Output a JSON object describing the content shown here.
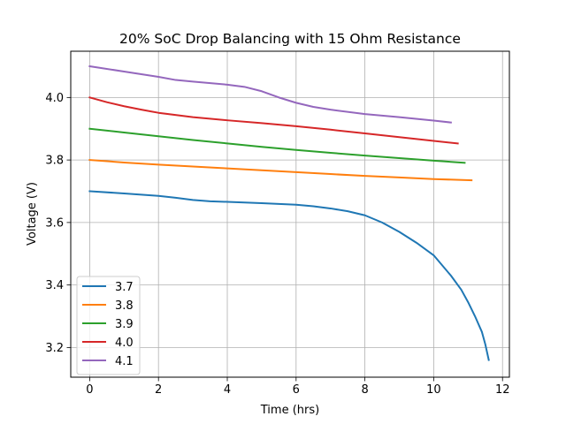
{
  "chart_data": {
    "type": "line",
    "title": "20% SoC Drop Balancing with 15 Ohm Resistance",
    "xlabel": "Time (hrs)",
    "ylabel": "Voltage (V)",
    "xlim": [
      -0.55,
      12.2
    ],
    "ylim": [
      3.105,
      4.148
    ],
    "xticks": [
      0,
      2,
      4,
      6,
      8,
      10,
      12
    ],
    "xtick_labels": [
      "0",
      "2",
      "4",
      "6",
      "8",
      "10",
      "12"
    ],
    "yticks": [
      3.2,
      3.4,
      3.6,
      3.8,
      4.0
    ],
    "ytick_labels": [
      "3.2",
      "3.4",
      "3.6",
      "3.8",
      "4.0"
    ],
    "grid": true,
    "legend_position": "lower-left",
    "series": [
      {
        "name": "3.7",
        "color": "#1f77b4",
        "x": [
          0,
          1,
          2,
          2.5,
          3,
          3.5,
          4,
          5,
          6,
          6.5,
          7,
          7.5,
          8,
          8.5,
          9,
          9.5,
          10,
          10.5,
          10.8,
          11,
          11.2,
          11.4,
          11.5,
          11.6
        ],
        "y": [
          3.7,
          3.693,
          3.685,
          3.679,
          3.672,
          3.668,
          3.666,
          3.662,
          3.657,
          3.652,
          3.645,
          3.636,
          3.623,
          3.6,
          3.57,
          3.535,
          3.495,
          3.43,
          3.385,
          3.345,
          3.3,
          3.25,
          3.21,
          3.16
        ]
      },
      {
        "name": "3.8",
        "color": "#ff7f0e",
        "x": [
          0,
          1,
          2,
          3,
          4,
          5,
          6,
          7,
          8,
          9,
          10,
          11.1
        ],
        "y": [
          3.8,
          3.792,
          3.785,
          3.779,
          3.773,
          3.767,
          3.761,
          3.755,
          3.749,
          3.744,
          3.739,
          3.735
        ]
      },
      {
        "name": "3.9",
        "color": "#2ca02c",
        "x": [
          0,
          1,
          2,
          3,
          4,
          5,
          6,
          7,
          8,
          9,
          10,
          10.9
        ],
        "y": [
          3.9,
          3.888,
          3.876,
          3.864,
          3.853,
          3.842,
          3.832,
          3.823,
          3.814,
          3.806,
          3.798,
          3.791
        ]
      },
      {
        "name": "4.0",
        "color": "#d62728",
        "x": [
          0,
          0.5,
          1,
          1.5,
          2,
          3,
          4,
          5,
          6,
          7,
          8,
          9,
          10,
          10.7
        ],
        "y": [
          4.0,
          3.985,
          3.972,
          3.961,
          3.951,
          3.937,
          3.927,
          3.918,
          3.908,
          3.897,
          3.885,
          3.873,
          3.861,
          3.853
        ]
      },
      {
        "name": "4.1",
        "color": "#9467bd",
        "x": [
          0,
          1,
          2,
          2.5,
          3,
          4,
          4.5,
          5,
          5.5,
          6,
          6.5,
          7,
          8,
          9,
          10,
          10.5
        ],
        "y": [
          4.1,
          4.083,
          4.066,
          4.056,
          4.051,
          4.041,
          4.034,
          4.02,
          4.0,
          3.983,
          3.97,
          3.961,
          3.947,
          3.937,
          3.926,
          3.92
        ]
      }
    ]
  }
}
